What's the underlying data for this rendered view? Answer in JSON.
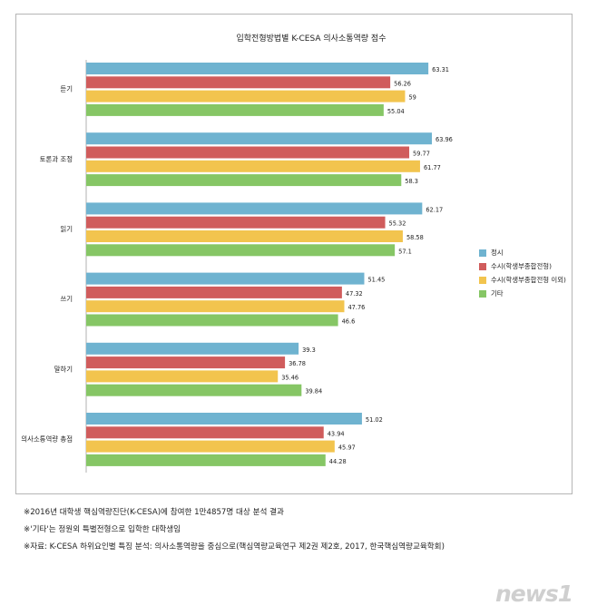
{
  "chart_data": {
    "type": "bar",
    "orientation": "horizontal",
    "title": "입학전형방법별 K-CESA 의사소통역량 점수",
    "categories": [
      "듣기",
      "토론과 조정",
      "읽기",
      "쓰기",
      "말하기",
      "의사소통역량 총점"
    ],
    "series": [
      {
        "name": "정시",
        "color": "#6fb3d0",
        "values": [
          63.31,
          63.96,
          62.17,
          51.45,
          39.3,
          51.02
        ]
      },
      {
        "name": "수시(학생부종합전형)",
        "color": "#d05c5c",
        "values": [
          56.26,
          59.77,
          55.32,
          47.32,
          36.78,
          43.94
        ]
      },
      {
        "name": "수시(학생부종합전형 이외)",
        "color": "#f2c44e",
        "values": [
          59,
          61.77,
          58.58,
          47.76,
          35.46,
          45.97
        ]
      },
      {
        "name": "기타",
        "color": "#86c665",
        "values": [
          55.04,
          58.3,
          57.1,
          46.6,
          39.84,
          44.28
        ]
      }
    ],
    "data_labels": [
      [
        "63.31",
        "56.26",
        "59",
        "55.04"
      ],
      [
        "63.96",
        "59.77",
        "61.77",
        "58.3"
      ],
      [
        "62.17",
        "55.32",
        "58.58",
        "57.1"
      ],
      [
        "51.45",
        "47.32",
        "47.76",
        "46.6"
      ],
      [
        "39.3",
        "36.78",
        "35.46",
        "39.84"
      ],
      [
        "51.02",
        "43.94",
        "45.97",
        "44.28"
      ]
    ],
    "legend": [
      "정시",
      "수시(학생부종합전형)",
      "수시(학생부종합전형 이외)",
      "기타"
    ],
    "legend_position": "right",
    "xlim": [
      0,
      70
    ],
    "grid": false
  },
  "notes": [
    "※2016년 대학생 핵심역량진단(K-CESA)에 참여한 1만4857명 대상 분석 결과",
    "※'기타'는 정원외 특별전형으로 입학한 대학생임",
    "※자료: K-CESA 하위요인별 특징 분석: 의사소통역량을 중심으로(핵심역량교육연구 제2권 제2호, 2017, 한국핵심역량교육학회)"
  ],
  "watermark": "news1"
}
